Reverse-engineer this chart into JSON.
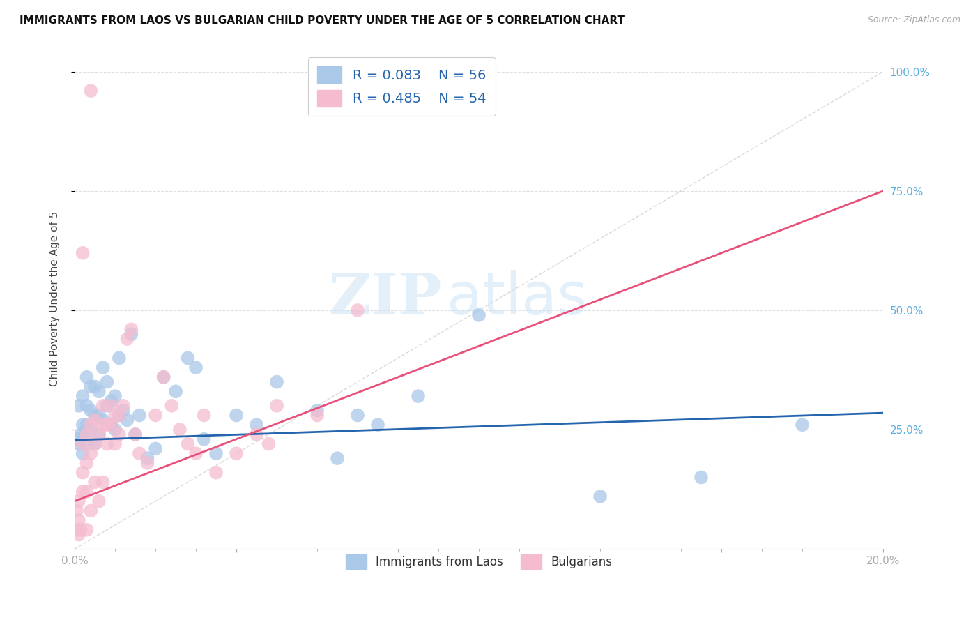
{
  "title": "IMMIGRANTS FROM LAOS VS BULGARIAN CHILD POVERTY UNDER THE AGE OF 5 CORRELATION CHART",
  "source": "Source: ZipAtlas.com",
  "ylabel": "Child Poverty Under the Age of 5",
  "legend_blue_r": "R = 0.083",
  "legend_blue_n": "N = 56",
  "legend_pink_r": "R = 0.485",
  "legend_pink_n": "N = 54",
  "blue_color": "#aac8e8",
  "pink_color": "#f5bcd0",
  "blue_line_color": "#2565ae",
  "pink_line_color": "#e8507a",
  "diag_line_color": "#c8c8c8",
  "grid_color": "#e0e0e0",
  "watermark_zip": "ZIP",
  "watermark_atlas": "atlas",
  "ylabel_right_vals": [
    1.0,
    0.75,
    0.5,
    0.25
  ],
  "ylabel_right_labels": [
    "100.0%",
    "75.0%",
    "50.0%",
    "25.0%"
  ],
  "right_tick_color": "#5aafe0",
  "xlim": [
    0.0,
    0.2
  ],
  "ylim": [
    0.0,
    1.05
  ],
  "blue_line_x": [
    0.0,
    0.2
  ],
  "blue_line_y": [
    0.228,
    0.285
  ],
  "pink_line_x": [
    0.0,
    0.2
  ],
  "pink_line_y": [
    0.1,
    0.75
  ],
  "diag_line_x": [
    0.0,
    0.2
  ],
  "diag_line_y": [
    0.0,
    1.0
  ],
  "blue_scatter_x": [
    0.0005,
    0.001,
    0.001,
    0.0015,
    0.002,
    0.002,
    0.002,
    0.0025,
    0.003,
    0.003,
    0.003,
    0.003,
    0.004,
    0.004,
    0.004,
    0.005,
    0.005,
    0.005,
    0.006,
    0.006,
    0.006,
    0.007,
    0.007,
    0.008,
    0.008,
    0.009,
    0.009,
    0.01,
    0.01,
    0.011,
    0.011,
    0.012,
    0.013,
    0.014,
    0.015,
    0.016,
    0.018,
    0.02,
    0.022,
    0.025,
    0.028,
    0.03,
    0.032,
    0.035,
    0.04,
    0.045,
    0.05,
    0.06,
    0.065,
    0.07,
    0.075,
    0.085,
    0.1,
    0.13,
    0.155,
    0.18
  ],
  "blue_scatter_y": [
    0.23,
    0.22,
    0.3,
    0.24,
    0.2,
    0.26,
    0.32,
    0.24,
    0.22,
    0.26,
    0.3,
    0.36,
    0.25,
    0.29,
    0.34,
    0.22,
    0.28,
    0.34,
    0.24,
    0.28,
    0.33,
    0.27,
    0.38,
    0.3,
    0.35,
    0.26,
    0.31,
    0.25,
    0.32,
    0.28,
    0.4,
    0.29,
    0.27,
    0.45,
    0.24,
    0.28,
    0.19,
    0.21,
    0.36,
    0.33,
    0.4,
    0.38,
    0.23,
    0.2,
    0.28,
    0.26,
    0.35,
    0.29,
    0.19,
    0.28,
    0.26,
    0.32,
    0.49,
    0.11,
    0.15,
    0.26
  ],
  "pink_scatter_x": [
    0.0003,
    0.0005,
    0.001,
    0.001,
    0.001,
    0.0015,
    0.002,
    0.002,
    0.002,
    0.003,
    0.003,
    0.003,
    0.003,
    0.004,
    0.004,
    0.004,
    0.005,
    0.005,
    0.005,
    0.006,
    0.006,
    0.007,
    0.007,
    0.007,
    0.008,
    0.008,
    0.009,
    0.009,
    0.01,
    0.01,
    0.011,
    0.011,
    0.012,
    0.013,
    0.014,
    0.015,
    0.016,
    0.018,
    0.02,
    0.022,
    0.024,
    0.026,
    0.028,
    0.03,
    0.032,
    0.035,
    0.04,
    0.045,
    0.048,
    0.05,
    0.06,
    0.07,
    0.002,
    0.004
  ],
  "pink_scatter_y": [
    0.04,
    0.08,
    0.03,
    0.06,
    0.1,
    0.04,
    0.12,
    0.16,
    0.22,
    0.04,
    0.12,
    0.18,
    0.24,
    0.08,
    0.2,
    0.26,
    0.14,
    0.22,
    0.27,
    0.1,
    0.24,
    0.26,
    0.3,
    0.14,
    0.22,
    0.26,
    0.26,
    0.3,
    0.22,
    0.28,
    0.24,
    0.28,
    0.3,
    0.44,
    0.46,
    0.24,
    0.2,
    0.18,
    0.28,
    0.36,
    0.3,
    0.25,
    0.22,
    0.2,
    0.28,
    0.16,
    0.2,
    0.24,
    0.22,
    0.3,
    0.28,
    0.5,
    0.62,
    0.96
  ]
}
